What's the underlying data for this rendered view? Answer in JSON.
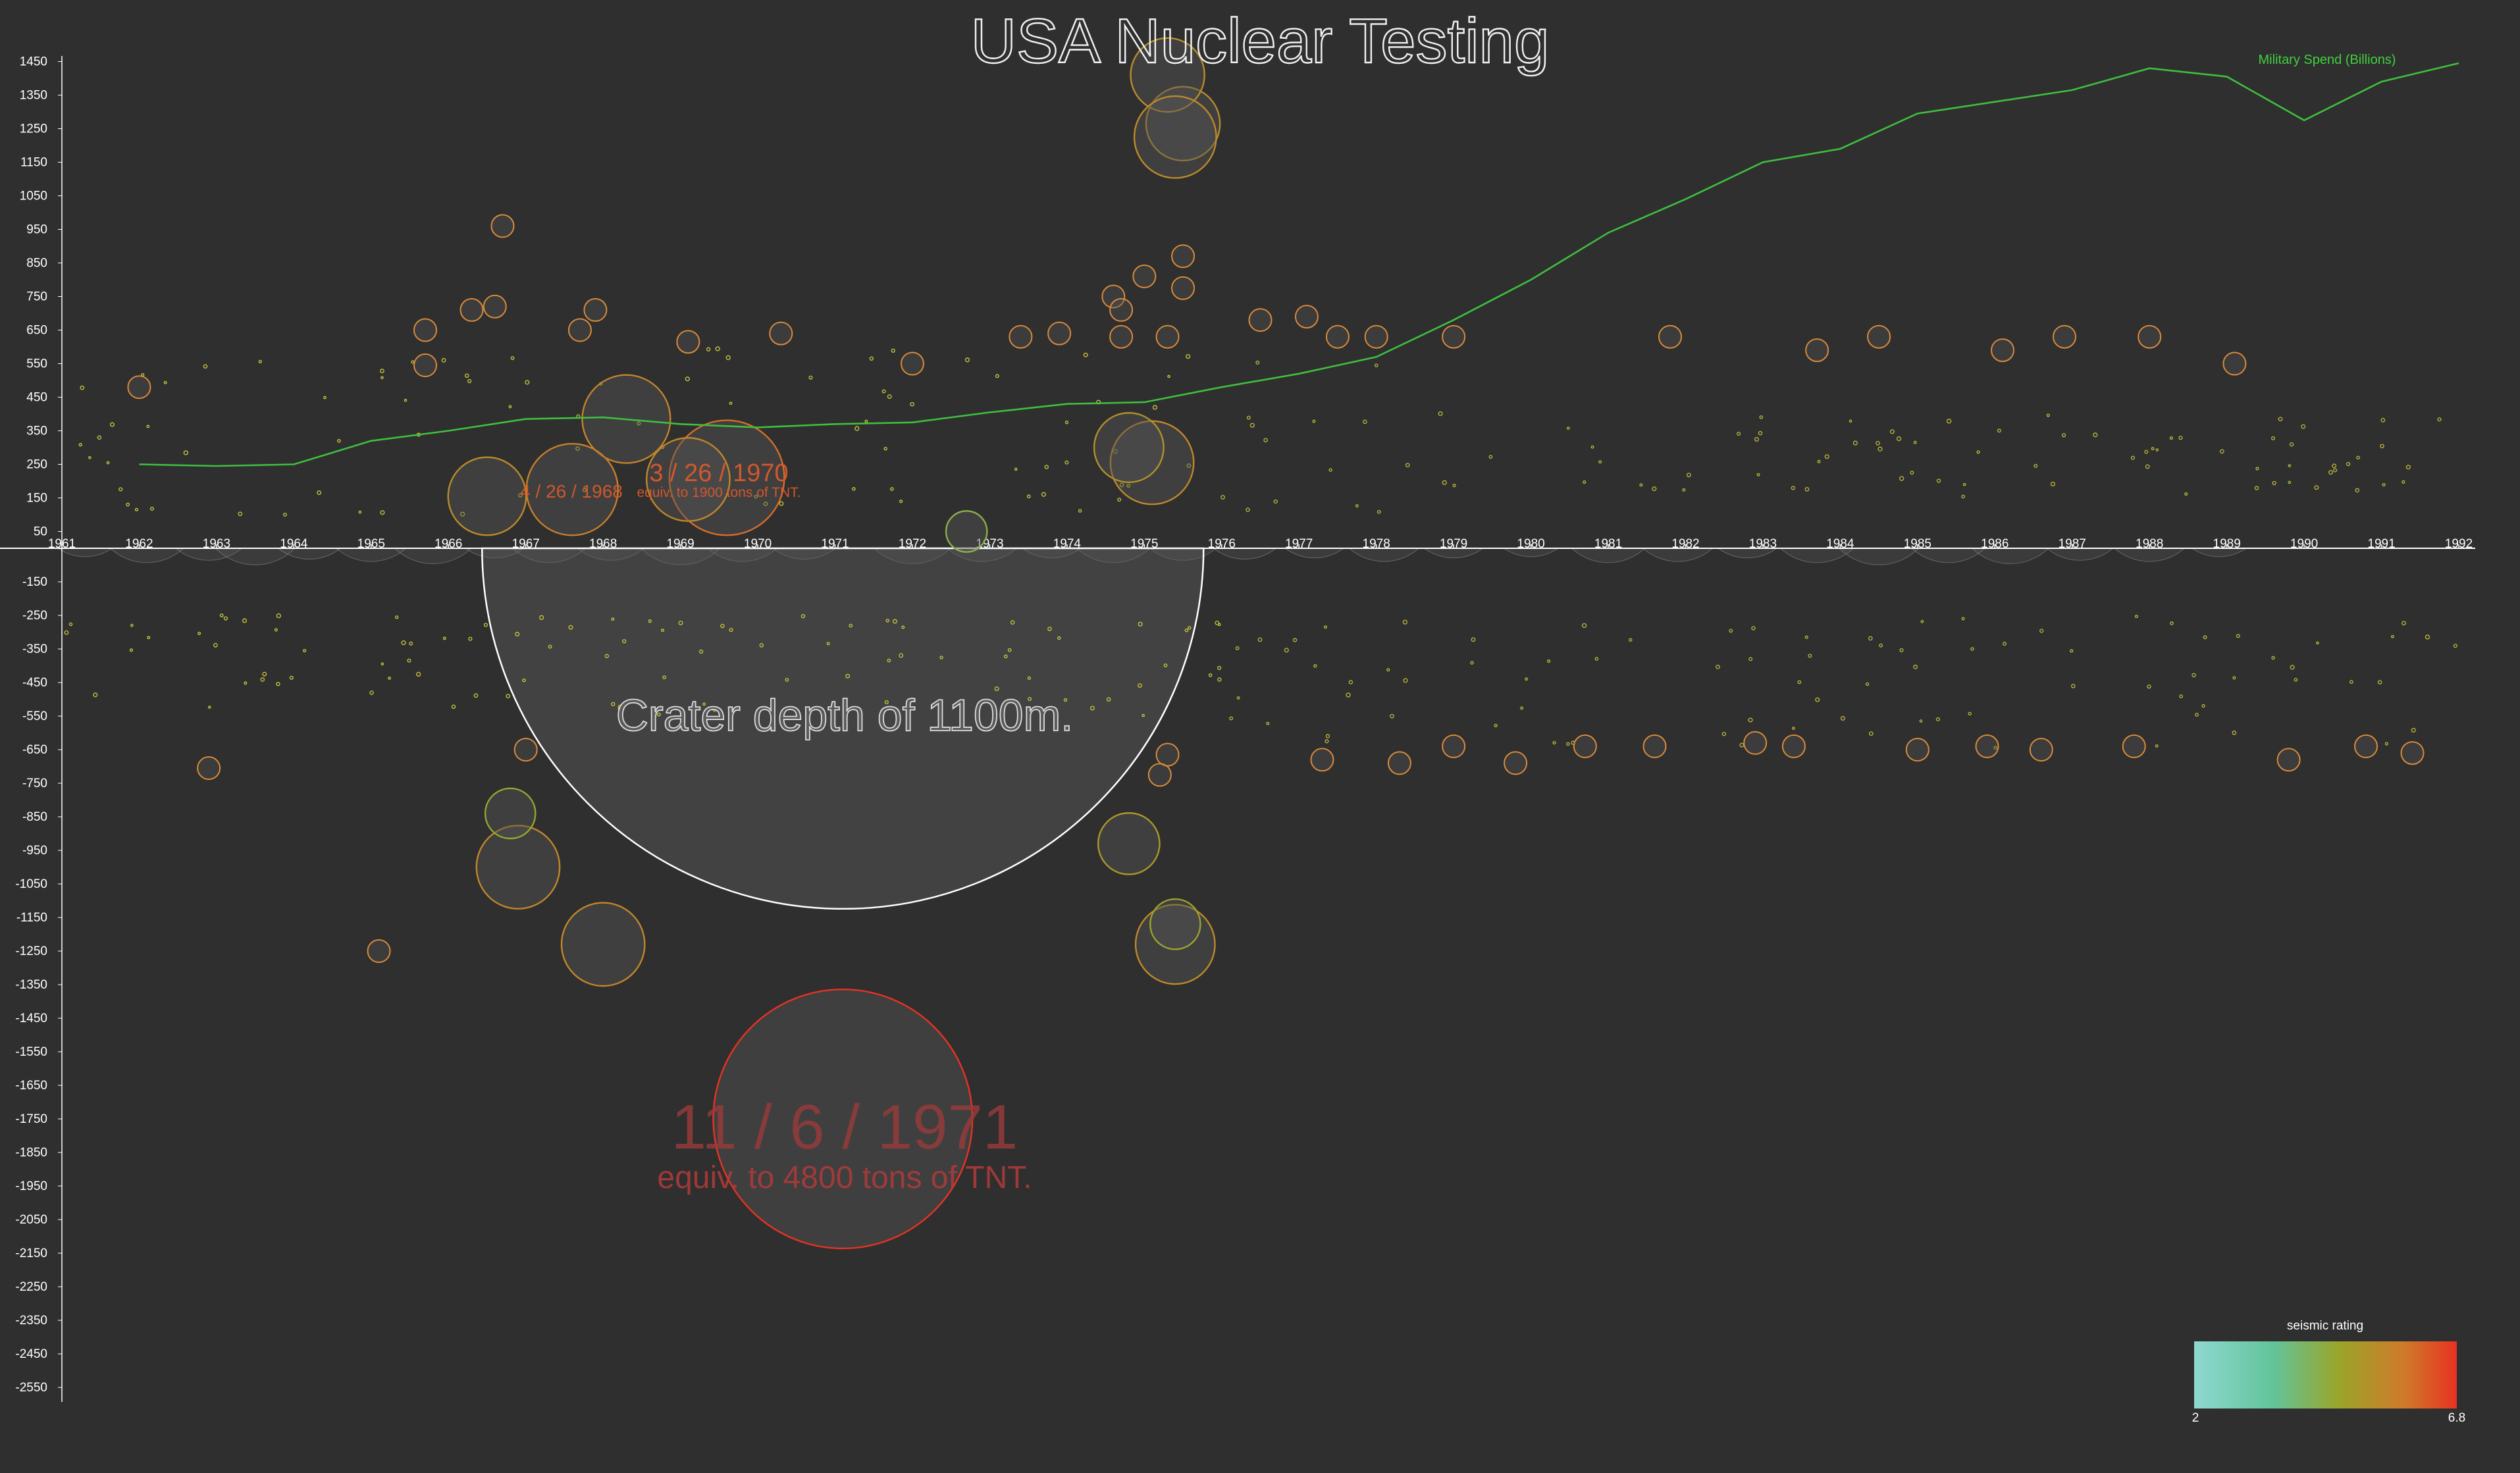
{
  "title": "USA Nuclear Testing",
  "colors": {
    "background": "#2f2f2f",
    "axis": "#ffffff",
    "spend_line": "#3fbf3f",
    "bubble_fill": "#555555",
    "crater": "#ffffff",
    "scale_low": "#8fd8d0",
    "scale_mid": "#9aa52a",
    "scale_high": "#e83222"
  },
  "chart_data": {
    "type": "scatter",
    "title": "USA Nuclear Testing",
    "xlim": [
      1961,
      1992
    ],
    "x_ticks": [
      "1961",
      "1962",
      "1963",
      "1964",
      "1965",
      "1966",
      "1967",
      "1968",
      "1969",
      "1970",
      "1971",
      "1972",
      "1973",
      "1974",
      "1975",
      "1976",
      "1977",
      "1978",
      "1979",
      "1980",
      "1981",
      "1982",
      "1983",
      "1984",
      "1985",
      "1986",
      "1987",
      "1988",
      "1989",
      "1990",
      "1991",
      "1992"
    ],
    "y_ticks_top": [
      "1450",
      "1350",
      "1250",
      "1150",
      "1050",
      "950",
      "850",
      "750",
      "650",
      "550",
      "450",
      "350",
      "250",
      "150",
      "50"
    ],
    "y_ticks_bottom": [
      "-150",
      "-250",
      "-350",
      "-450",
      "-550",
      "-650",
      "-750",
      "-850",
      "-950",
      "-1050",
      "-1150",
      "-1250",
      "-1350",
      "-1450",
      "-1550",
      "-1650",
      "-1750",
      "-1850",
      "-1950",
      "-2050",
      "-2150",
      "-2250",
      "-2350",
      "-2450",
      "-2550"
    ],
    "spend_series": {
      "name": "Military Spend (Billions)",
      "x": [
        1962,
        1963,
        1964,
        1965,
        1966,
        1967,
        1968,
        1969,
        1970,
        1971,
        1972,
        1973,
        1974,
        1975,
        1976,
        1977,
        1978,
        1979,
        1980,
        1981,
        1982,
        1983,
        1984,
        1985,
        1986,
        1987,
        1988,
        1989,
        1990,
        1991,
        1992
      ],
      "y": [
        250,
        245,
        250,
        320,
        350,
        385,
        390,
        370,
        360,
        370,
        375,
        405,
        430,
        435,
        480,
        520,
        570,
        680,
        800,
        940,
        1040,
        1150,
        1190,
        1295,
        1330,
        1365,
        1430,
        1405,
        1275,
        1390,
        1445
      ]
    },
    "annotations": {
      "crater": {
        "text": "Crater depth of 1100m.",
        "x": 1971.1,
        "depth": 1100
      },
      "big_event": {
        "date": "11 / 6 / 1971",
        "text": "equiv. to 4800 tons of TNT.",
        "x": 1971.1,
        "y": -1750
      },
      "event_1968": {
        "date": "4 / 26 / 1968",
        "x": 1967.6,
        "y": 175
      },
      "event_1970": {
        "date": "3 / 26 / 1970",
        "text": "equiv. to 1900 tons of TNT.",
        "x": 1969.6,
        "y": 210
      }
    },
    "legend": {
      "title": "seismic rating",
      "min": "2",
      "max": "6.8",
      "placement": "bottom-right"
    },
    "large_tests": [
      {
        "x": 1971.1,
        "y": -1750,
        "r": 1600,
        "s": 6.8
      },
      {
        "x": 1969.6,
        "y": 210,
        "r": 315,
        "s": 6.0
      },
      {
        "x": 1968.3,
        "y": 385,
        "r": 185,
        "s": 5.6
      },
      {
        "x": 1967.6,
        "y": 175,
        "r": 200,
        "s": 5.7
      },
      {
        "x": 1969.1,
        "y": 205,
        "r": 165,
        "s": 5.5
      },
      {
        "x": 1966.5,
        "y": 155,
        "r": 145,
        "s": 5.4
      },
      {
        "x": 1975.1,
        "y": 255,
        "r": 165,
        "s": 5.5
      },
      {
        "x": 1974.8,
        "y": 300,
        "r": 115,
        "s": 5.2
      },
      {
        "x": 1975.5,
        "y": 1265,
        "r": 130,
        "s": 5.3
      },
      {
        "x": 1975.3,
        "y": 1410,
        "r": 130,
        "s": 5.3
      },
      {
        "x": 1975.4,
        "y": 1225,
        "r": 160,
        "s": 5.4
      },
      {
        "x": 1966.9,
        "y": -1000,
        "r": 165,
        "s": 5.5
      },
      {
        "x": 1968.0,
        "y": -1230,
        "r": 165,
        "s": 5.5
      },
      {
        "x": 1974.8,
        "y": -930,
        "r": 90,
        "s": 5.0
      },
      {
        "x": 1975.4,
        "y": -1230,
        "r": 150,
        "s": 5.4
      },
      {
        "x": 1975.4,
        "y": -1170,
        "r": 60,
        "s": 4.7
      },
      {
        "x": 1966.8,
        "y": -840,
        "r": 60,
        "s": 4.6
      },
      {
        "x": 1972.7,
        "y": 50,
        "r": 40,
        "s": 4.3
      }
    ],
    "medium_tests": [
      {
        "x": 1962.0,
        "y": 480
      },
      {
        "x": 1965.7,
        "y": 545
      },
      {
        "x": 1965.7,
        "y": 650
      },
      {
        "x": 1966.3,
        "y": 710
      },
      {
        "x": 1966.6,
        "y": 720
      },
      {
        "x": 1966.7,
        "y": 960
      },
      {
        "x": 1967.7,
        "y": 650
      },
      {
        "x": 1967.9,
        "y": 710
      },
      {
        "x": 1969.1,
        "y": 615
      },
      {
        "x": 1970.3,
        "y": 640
      },
      {
        "x": 1972.0,
        "y": 550
      },
      {
        "x": 1973.4,
        "y": 630
      },
      {
        "x": 1973.9,
        "y": 640
      },
      {
        "x": 1974.6,
        "y": 750
      },
      {
        "x": 1974.7,
        "y": 710
      },
      {
        "x": 1975.0,
        "y": 810
      },
      {
        "x": 1975.5,
        "y": 870
      },
      {
        "x": 1975.5,
        "y": 775
      },
      {
        "x": 1974.7,
        "y": 630
      },
      {
        "x": 1975.3,
        "y": 630
      },
      {
        "x": 1976.5,
        "y": 680
      },
      {
        "x": 1977.1,
        "y": 690
      },
      {
        "x": 1977.5,
        "y": 630
      },
      {
        "x": 1978.0,
        "y": 630
      },
      {
        "x": 1979.0,
        "y": 630
      },
      {
        "x": 1981.8,
        "y": 630
      },
      {
        "x": 1983.7,
        "y": 590
      },
      {
        "x": 1984.5,
        "y": 630
      },
      {
        "x": 1986.1,
        "y": 590
      },
      {
        "x": 1986.9,
        "y": 630
      },
      {
        "x": 1988.0,
        "y": 630
      },
      {
        "x": 1989.1,
        "y": 550
      },
      {
        "x": 1962.9,
        "y": -705
      },
      {
        "x": 1965.1,
        "y": -1250
      },
      {
        "x": 1967.0,
        "y": -650
      },
      {
        "x": 1975.3,
        "y": -665
      },
      {
        "x": 1975.2,
        "y": -725
      },
      {
        "x": 1977.3,
        "y": -680
      },
      {
        "x": 1978.3,
        "y": -690
      },
      {
        "x": 1979.0,
        "y": -640
      },
      {
        "x": 1979.8,
        "y": -690
      },
      {
        "x": 1980.7,
        "y": -640
      },
      {
        "x": 1981.6,
        "y": -640
      },
      {
        "x": 1982.9,
        "y": -630
      },
      {
        "x": 1983.4,
        "y": -640
      },
      {
        "x": 1985.0,
        "y": -650
      },
      {
        "x": 1985.9,
        "y": -640
      },
      {
        "x": 1986.6,
        "y": -650
      },
      {
        "x": 1987.8,
        "y": -640
      },
      {
        "x": 1989.8,
        "y": -680
      },
      {
        "x": 1990.8,
        "y": -640
      },
      {
        "x": 1991.4,
        "y": -660
      }
    ],
    "surface_craters": [
      {
        "x": 1961.3,
        "y": -150,
        "r": 190
      },
      {
        "x": 1962.1,
        "y": -200,
        "r": 240
      },
      {
        "x": 1962.9,
        "y": -170,
        "r": 220
      },
      {
        "x": 1963.5,
        "y": -230,
        "r": 260
      },
      {
        "x": 1964.2,
        "y": -180,
        "r": 210
      },
      {
        "x": 1965.0,
        "y": -160,
        "r": 230
      },
      {
        "x": 1965.8,
        "y": -220,
        "r": 250
      },
      {
        "x": 1966.6,
        "y": -170,
        "r": 200
      },
      {
        "x": 1967.3,
        "y": -190,
        "r": 240
      },
      {
        "x": 1968.1,
        "y": -210,
        "r": 220
      },
      {
        "x": 1969.0,
        "y": -180,
        "r": 260
      },
      {
        "x": 1969.8,
        "y": -230,
        "r": 230
      },
      {
        "x": 1970.6,
        "y": -190,
        "r": 210
      },
      {
        "x": 1972.0,
        "y": -170,
        "r": 250
      },
      {
        "x": 1972.9,
        "y": -220,
        "r": 230
      },
      {
        "x": 1973.8,
        "y": -180,
        "r": 200
      },
      {
        "x": 1974.6,
        "y": -210,
        "r": 240
      },
      {
        "x": 1975.5,
        "y": -170,
        "r": 220
      },
      {
        "x": 1976.3,
        "y": -190,
        "r": 210
      },
      {
        "x": 1977.2,
        "y": -160,
        "r": 200
      },
      {
        "x": 1978.1,
        "y": -180,
        "r": 230
      },
      {
        "x": 1979.0,
        "y": -150,
        "r": 200
      },
      {
        "x": 1980.0,
        "y": -140,
        "r": 190
      },
      {
        "x": 1981.0,
        "y": -190,
        "r": 240
      },
      {
        "x": 1981.9,
        "y": -210,
        "r": 230
      },
      {
        "x": 1982.8,
        "y": -160,
        "r": 200
      },
      {
        "x": 1983.7,
        "y": -200,
        "r": 240
      },
      {
        "x": 1984.5,
        "y": -230,
        "r": 260
      },
      {
        "x": 1985.4,
        "y": -200,
        "r": 240
      },
      {
        "x": 1986.2,
        "y": -190,
        "r": 250
      },
      {
        "x": 1987.1,
        "y": -160,
        "r": 220
      },
      {
        "x": 1988.0,
        "y": -170,
        "r": 230
      },
      {
        "x": 1988.9,
        "y": -140,
        "r": 190
      },
      {
        "x": 1990.4,
        "y": -130,
        "r": 120
      }
    ]
  }
}
